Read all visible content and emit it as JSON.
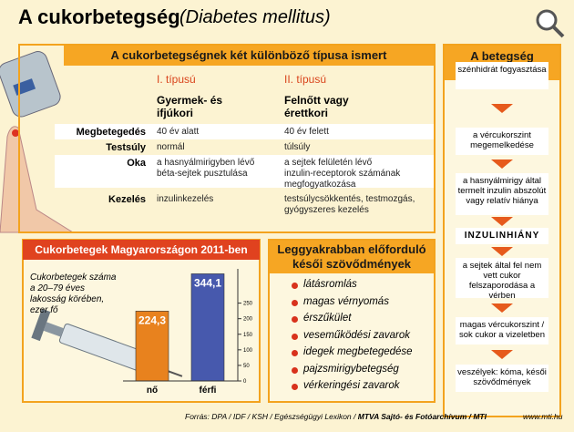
{
  "header": {
    "title": "A cukorbetegség",
    "subtitle": "(Diabetes mellitus)"
  },
  "types": {
    "title": "A cukorbetegségnek két különböző típusa ismert",
    "columns": [
      "I. típusú",
      "II. típusú"
    ],
    "groups": [
      "Gyermek- és ifjúkori",
      "Felnőtt vagy érettkori"
    ],
    "rows": [
      {
        "label": "Megbetegedés",
        "values": [
          "40 év alatt",
          "40 év felett"
        ]
      },
      {
        "label": "Testsúly",
        "values": [
          "normál",
          "túlsúly"
        ]
      },
      {
        "label": "Oka",
        "values": [
          "a hasnyálmirigyben lévő béta-sejtek pusztulása",
          "a sejtek felületén lévő inzulin-receptorok számának megfogyatkozása"
        ]
      },
      {
        "label": "Kezelés",
        "values": [
          "inzulinkezelés",
          "testsúlycsökkentés, testmozgás, gyógyszeres kezelés"
        ]
      }
    ]
  },
  "progress": {
    "title": "A betegség folyamata",
    "steps": [
      "szénhidrát fogyasztása",
      "a vércukorszint megemelkedése",
      "a hasnyálmirigy által termelt inzulin abszolút vagy relatív hiánya",
      "INZULINHIÁNY",
      "a sejtek által fel nem vett cukor felszaporodása a vérben",
      "magas vércukorszint / sok cukor a vizeletben",
      "veszélyek: kóma, késői szövődmények"
    ]
  },
  "chart_data": {
    "type": "bar",
    "title": "Cukorbetegek Magyarországon 2011-ben",
    "y_label": "Cukorbetegek száma a 20–79 éves lakosság körében, ezer fő",
    "categories": [
      "nő",
      "férfi"
    ],
    "values": [
      224.3,
      344.1
    ],
    "value_labels": [
      "224,3",
      "344,1"
    ],
    "colors": [
      "#e8821e",
      "#4759ad"
    ],
    "ylim": [
      0,
      360
    ],
    "yticks": [
      0,
      50,
      100,
      150,
      200,
      250
    ]
  },
  "complications": {
    "title": "Leggyakrabban előforduló késői szövődmények",
    "items": [
      "látásromlás",
      "magas vérnyomás",
      "érszűkület",
      "veseműködési zavarok",
      "idegek megbetegedése",
      "pajzsmirigybetegség",
      "vérkeringési zavarok"
    ]
  },
  "footer": {
    "source": "Forrás: DPA / IDF / KSH / Egészségügyi Lexikon /",
    "agency": "MTVA Sajtó- és Fotóarchívum / MTI",
    "url": "www.mti.hu"
  }
}
